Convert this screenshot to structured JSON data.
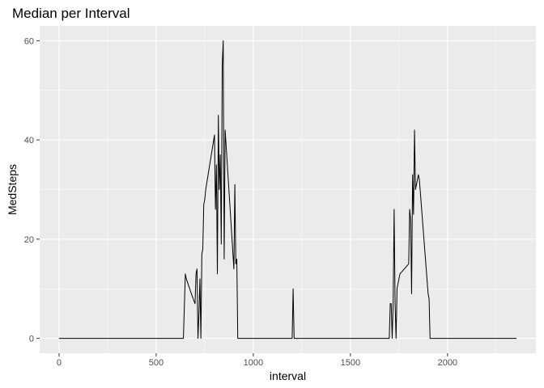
{
  "chart_data": {
    "type": "line",
    "title": "Median per Interval",
    "xlabel": "interval",
    "ylabel": "MedSteps",
    "xlim": [
      -100,
      2455
    ],
    "ylim": [
      -3,
      63
    ],
    "x_ticks": [
      0,
      500,
      1000,
      1500,
      2000
    ],
    "y_ticks": [
      0,
      20,
      40,
      60
    ],
    "x_tick_labels": [
      "0",
      "500",
      "1000",
      "1500",
      "2000"
    ],
    "y_tick_labels": [
      "0",
      "20",
      "40",
      "60"
    ],
    "grid": true,
    "background": "#ebebeb",
    "line_color": "#000000",
    "x": [
      0,
      640,
      650,
      655,
      690,
      700,
      705,
      710,
      715,
      720,
      725,
      730,
      735,
      740,
      745,
      750,
      755,
      800,
      805,
      810,
      815,
      820,
      825,
      830,
      835,
      840,
      845,
      850,
      855,
      900,
      905,
      910,
      915,
      920,
      925,
      930,
      935,
      1200,
      1205,
      1210,
      1215,
      1700,
      1705,
      1710,
      1715,
      1720,
      1725,
      1730,
      1735,
      1740,
      1745,
      1750,
      1755,
      1800,
      1805,
      1810,
      1815,
      1820,
      1825,
      1830,
      1835,
      1840,
      1845,
      1850,
      1855,
      1900,
      1905,
      1910,
      1915,
      1920,
      1925,
      2355
    ],
    "y": [
      0,
      0,
      13,
      12,
      8,
      7,
      13,
      14,
      0,
      5,
      12,
      0,
      17,
      18,
      27,
      28,
      30,
      41,
      26,
      35,
      13,
      45,
      30,
      37,
      19,
      55,
      60,
      16,
      42,
      14,
      31,
      15,
      16,
      0,
      0,
      0,
      0,
      0,
      10,
      0,
      0,
      0,
      7,
      7,
      0,
      7,
      26,
      7,
      0,
      10,
      11,
      12,
      13,
      15,
      26,
      24,
      9,
      33,
      25,
      42,
      30,
      31,
      32,
      33,
      32,
      9,
      8,
      0,
      0,
      0,
      0,
      0
    ]
  }
}
